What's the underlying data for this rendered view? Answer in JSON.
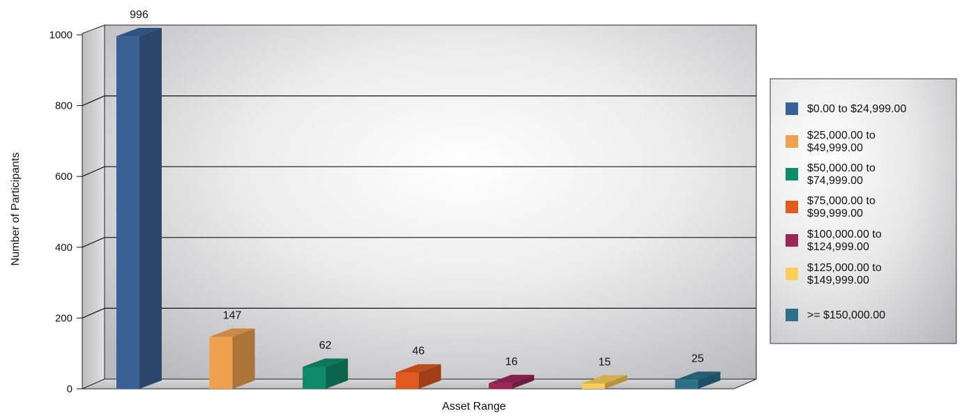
{
  "chart_data": {
    "type": "bar",
    "xlabel": "Asset Range",
    "ylabel": "Number of Participants",
    "ylim": [
      0,
      1000
    ],
    "yticks": [
      0,
      200,
      400,
      600,
      800,
      1000
    ],
    "grid": true,
    "legend_position": "right",
    "series": [
      {
        "name": "$0.00 to $24,999.00",
        "value": 996,
        "color": "#3a6193"
      },
      {
        "name": "$25,000.00 to $49,999.00",
        "value": 147,
        "color": "#f0a14f"
      },
      {
        "name": "$50,000.00 to $74,999.00",
        "value": 62,
        "color": "#0f8b6b"
      },
      {
        "name": "$75,000.00 to $99,999.00",
        "value": 46,
        "color": "#e0591f"
      },
      {
        "name": "$100,000.00 to $124,999.00",
        "value": 16,
        "color": "#9c2559"
      },
      {
        "name": "$125,000.00 to $149,999.00",
        "value": 15,
        "color": "#fccd5c"
      },
      {
        "name": ">= $150,000.00",
        "value": 25,
        "color": "#2a7187"
      }
    ]
  }
}
